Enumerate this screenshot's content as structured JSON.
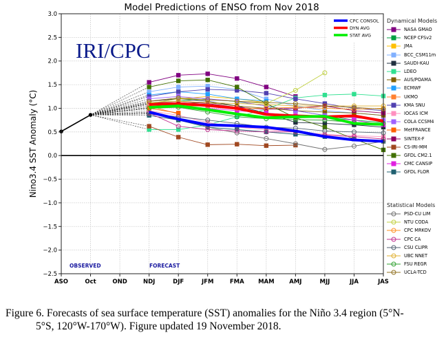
{
  "chart_data": {
    "type": "line",
    "title": "Model Predictions of ENSO from Nov 2018",
    "xlabel": "",
    "ylabel": "Nino3.4 SST Anomaly (°C)",
    "ylim": [
      -2.5,
      3.0
    ],
    "yticks": [
      "3.0",
      "2.5",
      "2.0",
      "1.5",
      "1.0",
      "0.5",
      "0.0",
      "−0.5",
      "−1.0",
      "−1.5",
      "−2.0",
      "−2.5"
    ],
    "ytick_values": [
      3.0,
      2.5,
      2.0,
      1.5,
      1.0,
      0.5,
      0.0,
      -0.5,
      -1.0,
      -1.5,
      -2.0,
      -2.5
    ],
    "categories": [
      "ASO",
      "Oct",
      "OND",
      "NDJ",
      "DJF",
      "JFM",
      "FMA",
      "MAM",
      "AMJ",
      "MJJ",
      "JJA",
      "JAS"
    ],
    "grid": true,
    "watermark": "IRI/CPC",
    "annotations": [
      "OBSERVED",
      "FORECAST"
    ],
    "observed": {
      "name": "Observed",
      "x": [
        "ASO",
        "Oct"
      ],
      "values": [
        0.51,
        0.86
      ]
    },
    "summary_series": [
      {
        "name": "CPC CONSOL",
        "color": "#0000ff",
        "values": [
          null,
          null,
          null,
          0.92,
          0.77,
          0.65,
          0.63,
          0.6,
          0.52,
          0.4,
          0.33,
          0.3
        ]
      },
      {
        "name": "DYN AVG",
        "color": "#ff0000",
        "values": [
          null,
          null,
          null,
          1.08,
          1.1,
          1.06,
          1.0,
          0.87,
          0.84,
          0.82,
          0.84,
          0.73
        ]
      },
      {
        "name": "STAT AVG",
        "color": "#00ee00",
        "values": [
          null,
          null,
          null,
          1.02,
          1.05,
          0.97,
          0.88,
          0.8,
          0.82,
          0.83,
          0.68,
          0.66
        ]
      }
    ],
    "legend_titles": {
      "dynamical": "Dynamical Models",
      "statistical": "Statistical Models"
    },
    "dynamical_models": [
      {
        "name": "NASA GMAO",
        "color": "#800080",
        "values": [
          null,
          null,
          null,
          1.55,
          1.7,
          1.73,
          1.63,
          1.45,
          1.25,
          null,
          null,
          null
        ]
      },
      {
        "name": "NCEP CFSv2",
        "color": "#00a040",
        "values": [
          null,
          null,
          null,
          1.12,
          1.15,
          1.2,
          1.14,
          1.05,
          0.95,
          0.85,
          0.75,
          0.7
        ]
      },
      {
        "name": "JMA",
        "color": "#ffc000",
        "values": [
          null,
          null,
          null,
          1.15,
          1.2,
          1.25,
          1.2,
          1.12,
          null,
          null,
          null,
          null
        ]
      },
      {
        "name": "BCC_CSM11m",
        "color": "#80b0ff",
        "values": [
          null,
          null,
          null,
          1.35,
          1.45,
          1.47,
          1.4,
          1.2,
          1.05,
          0.95,
          0.9,
          0.85
        ]
      },
      {
        "name": "SAUDI-KAU",
        "color": "#203040",
        "values": [
          null,
          null,
          null,
          1.15,
          1.2,
          1.15,
          1.05,
          0.9,
          0.7,
          0.68,
          0.65,
          0.6
        ]
      },
      {
        "name": "LDEO",
        "color": "#30e090",
        "values": [
          null,
          null,
          null,
          0.55,
          0.55,
          0.65,
          0.82,
          0.98,
          1.22,
          1.28,
          1.3,
          1.26
        ]
      },
      {
        "name": "AUS/POAMA",
        "color": "#806000",
        "values": [
          null,
          null,
          null,
          1.0,
          1.1,
          1.12,
          1.05,
          1.0,
          0.95,
          0.92,
          0.9,
          0.85
        ]
      },
      {
        "name": "ECMWF",
        "color": "#20a0ff",
        "values": [
          null,
          null,
          null,
          1.28,
          1.35,
          1.3,
          1.2,
          1.15,
          null,
          null,
          null,
          null
        ]
      },
      {
        "name": "UKMO",
        "color": "#ff8030",
        "values": [
          null,
          null,
          null,
          1.05,
          0.88,
          null,
          null,
          null,
          null,
          null,
          null,
          null
        ]
      },
      {
        "name": "KMA SNU",
        "color": "#5040b0",
        "values": [
          null,
          null,
          null,
          1.25,
          1.35,
          1.4,
          1.38,
          1.32,
          1.2,
          1.1,
          1.0,
          0.95
        ]
      },
      {
        "name": "IOCAS ICM",
        "color": "#ff90c0",
        "values": [
          null,
          null,
          null,
          0.95,
          0.85,
          0.7,
          0.6,
          0.55,
          0.5,
          0.45,
          0.42,
          0.4
        ]
      },
      {
        "name": "COLA CCSM4",
        "color": "#a060ff",
        "values": [
          null,
          null,
          null,
          1.2,
          1.25,
          1.2,
          1.15,
          1.05,
          0.95,
          0.85,
          0.8,
          0.75
        ]
      },
      {
        "name": "MetFRANCE",
        "color": "#ff6000",
        "values": [
          null,
          null,
          null,
          1.0,
          0.9,
          null,
          null,
          null,
          null,
          null,
          null,
          null
        ]
      },
      {
        "name": "SINTEX-F",
        "color": "#900060",
        "values": [
          null,
          null,
          null,
          1.1,
          1.15,
          1.1,
          1.02,
          0.98,
          1.0,
          1.05,
          0.95,
          0.9
        ]
      },
      {
        "name": "CS-IRI-MM",
        "color": "#a04820",
        "values": [
          null,
          null,
          null,
          0.62,
          0.39,
          0.23,
          0.24,
          0.21,
          0.22,
          null,
          null,
          null
        ]
      },
      {
        "name": "GFDL CM2.1",
        "color": "#407000",
        "values": [
          null,
          null,
          null,
          1.45,
          1.58,
          1.6,
          1.45,
          1.1,
          0.8,
          0.6,
          0.35,
          0.12
        ]
      },
      {
        "name": "CMC CANSIP",
        "color": "#e020e0",
        "values": [
          null,
          null,
          null,
          1.1,
          1.05,
          1.0,
          0.95,
          0.9,
          0.85,
          0.8,
          0.75,
          0.65
        ]
      },
      {
        "name": "GFDL FLOR",
        "color": "#206070",
        "values": [
          null,
          null,
          null,
          0.85,
          0.75,
          0.6,
          0.55,
          0.5,
          0.45,
          0.4,
          0.35,
          0.3
        ]
      }
    ],
    "statistical_models": [
      {
        "name": "PSD-CU LIM",
        "color": "#707070",
        "values": [
          null,
          null,
          null,
          0.9,
          0.78,
          0.6,
          0.48,
          0.36,
          0.25,
          0.13,
          0.2,
          0.3
        ]
      },
      {
        "name": "NTU CODA",
        "color": "#c0d040",
        "values": [
          null,
          null,
          null,
          1.1,
          1.2,
          1.18,
          1.15,
          1.1,
          1.38,
          1.75,
          null,
          null
        ]
      },
      {
        "name": "CPC MRKOV",
        "color": "#ff9020",
        "values": [
          null,
          null,
          null,
          1.0,
          1.05,
          1.05,
          1.0,
          1.0,
          1.02,
          1.0,
          0.98,
          1.0
        ]
      },
      {
        "name": "CPC CA",
        "color": "#c03090",
        "values": [
          null,
          null,
          null,
          0.9,
          0.62,
          0.55,
          0.52,
          0.5,
          0.5,
          0.43,
          0.4,
          0.35
        ]
      },
      {
        "name": "CSU CLIPR",
        "color": "#506070",
        "values": [
          null,
          null,
          null,
          0.88,
          0.82,
          0.75,
          0.68,
          0.6,
          0.58,
          0.52,
          0.5,
          0.48
        ]
      },
      {
        "name": "UBC NNET",
        "color": "#e0b030",
        "values": [
          null,
          null,
          null,
          1.12,
          1.15,
          1.12,
          1.1,
          1.08,
          1.05,
          1.05,
          1.05,
          1.05
        ]
      },
      {
        "name": "FSU REGR",
        "color": "#30a030",
        "values": [
          null,
          null,
          null,
          1.0,
          1.02,
          0.92,
          0.82,
          0.78,
          0.76,
          0.75,
          0.7,
          0.68
        ]
      },
      {
        "name": "UCLA-TCD",
        "color": "#907020",
        "values": [
          null,
          null,
          null,
          1.15,
          1.22,
          1.18,
          1.15,
          1.12,
          1.1,
          1.05,
          1.02,
          0.98
        ]
      }
    ]
  },
  "caption": {
    "line1": "Figure 6. Forecasts of sea surface temperature (SST) anomalies for the Niño 3.4 region (5°N-",
    "line2": "5°S, 120°W-170°W). Figure updated 19 November 2018."
  }
}
